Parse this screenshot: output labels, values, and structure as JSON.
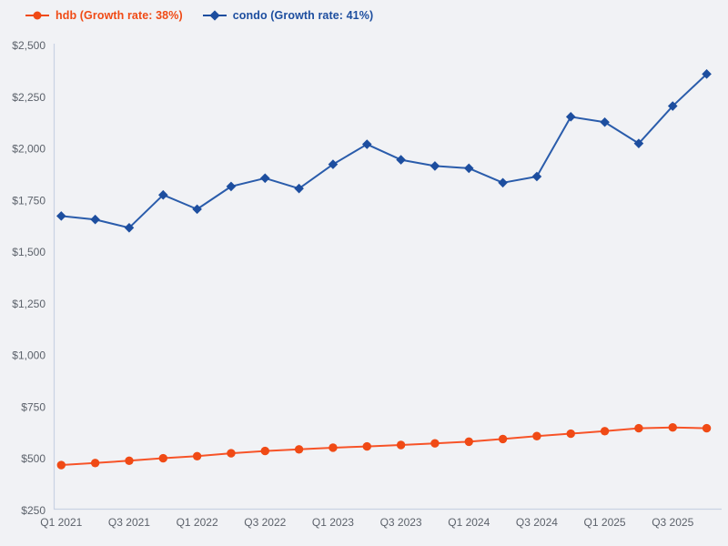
{
  "legend": {
    "items": [
      {
        "label": "hdb (Growth rate: 38%)",
        "marker": "circle",
        "color": "#f04a15"
      },
      {
        "label": "condo (Growth rate: 41%)",
        "marker": "diamond",
        "color": "#1d4e9f"
      }
    ],
    "position": "top-left"
  },
  "chart_data": {
    "type": "line",
    "x": [
      "Q1 2021",
      "Q2 2021",
      "Q3 2021",
      "Q4 2021",
      "Q1 2022",
      "Q2 2022",
      "Q3 2022",
      "Q4 2022",
      "Q1 2023",
      "Q2 2023",
      "Q3 2023",
      "Q4 2023",
      "Q1 2024",
      "Q2 2024",
      "Q3 2024",
      "Q4 2024",
      "Q1 2025",
      "Q2 2025",
      "Q3 2025",
      "Q4 2025"
    ],
    "xticks_shown": [
      "Q1 2021",
      "Q3 2021",
      "Q1 2022",
      "Q3 2022",
      "Q1 2023",
      "Q3 2023",
      "Q1 2024",
      "Q3 2024",
      "Q1 2025",
      "Q3 2025"
    ],
    "series": [
      {
        "name": "hdb (Growth rate: 38%)",
        "marker": "circle",
        "color": "#f04a15",
        "line_color": "#f75327",
        "values": [
          470,
          480,
          491,
          503,
          513,
          527,
          538,
          546,
          554,
          560,
          567,
          575,
          583,
          596,
          610,
          622,
          634,
          648,
          652,
          648
        ]
      },
      {
        "name": "condo (Growth rate: 41%)",
        "marker": "diamond",
        "color": "#1d4e9f",
        "line_color": "#2a5cab",
        "values": [
          1675,
          1658,
          1618,
          1777,
          1708,
          1818,
          1858,
          1808,
          1925,
          2022,
          1947,
          1917,
          1906,
          1836,
          1866,
          2155,
          2129,
          2026,
          2207,
          2362
        ]
      }
    ],
    "title": "",
    "xlabel": "",
    "ylabel": "",
    "ylim": [
      250,
      2500
    ],
    "ytick_step": 250,
    "ytick_labels": [
      "$250",
      "$500",
      "$750",
      "$1,000",
      "$1,250",
      "$1,500",
      "$1,750",
      "$2,000",
      "$2,250",
      "$2,500"
    ],
    "ytick_prefix": "$",
    "grid": false,
    "legend_position": "top-left"
  },
  "colors": {
    "background": "#f1f2f5",
    "axis_line": "#c9d2e3",
    "tick_label": "#5c626b",
    "hdb": "#f04a15",
    "condo": "#1d4e9f"
  }
}
